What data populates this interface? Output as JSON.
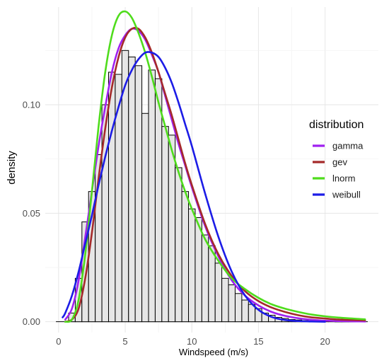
{
  "chart_data": {
    "type": "bar",
    "xlabel": "Windspeed (m/s)",
    "ylabel": "density",
    "xlim": [
      -1,
      24
    ],
    "ylim": [
      -0.005,
      0.145
    ],
    "x_ticks": [
      0,
      5,
      10,
      15,
      20
    ],
    "y_ticks": [
      0.0,
      0.05,
      0.1
    ],
    "y_tick_labels": [
      "0.00",
      "0.05",
      "0.10"
    ],
    "grid": true,
    "histogram": {
      "bin_width": 0.5,
      "bins": [
        {
          "x": 1.0,
          "y": 0.004
        },
        {
          "x": 1.5,
          "y": 0.02
        },
        {
          "x": 2.0,
          "y": 0.046
        },
        {
          "x": 2.5,
          "y": 0.06
        },
        {
          "x": 3.0,
          "y": 0.077
        },
        {
          "x": 3.5,
          "y": 0.1
        },
        {
          "x": 4.0,
          "y": 0.115
        },
        {
          "x": 4.5,
          "y": 0.114
        },
        {
          "x": 5.0,
          "y": 0.125
        },
        {
          "x": 5.5,
          "y": 0.122
        },
        {
          "x": 6.0,
          "y": 0.118
        },
        {
          "x": 6.5,
          "y": 0.096
        },
        {
          "x": 7.0,
          "y": 0.116
        },
        {
          "x": 7.5,
          "y": 0.112
        },
        {
          "x": 8.0,
          "y": 0.09
        },
        {
          "x": 8.5,
          "y": 0.086
        },
        {
          "x": 9.0,
          "y": 0.071
        },
        {
          "x": 9.5,
          "y": 0.06
        },
        {
          "x": 10.0,
          "y": 0.052
        },
        {
          "x": 10.5,
          "y": 0.048
        },
        {
          "x": 11.0,
          "y": 0.04
        },
        {
          "x": 11.5,
          "y": 0.035
        },
        {
          "x": 12.0,
          "y": 0.027
        },
        {
          "x": 12.5,
          "y": 0.02
        },
        {
          "x": 13.0,
          "y": 0.017
        },
        {
          "x": 13.5,
          "y": 0.013
        },
        {
          "x": 14.0,
          "y": 0.01
        },
        {
          "x": 14.5,
          "y": 0.008
        },
        {
          "x": 15.0,
          "y": 0.006
        },
        {
          "x": 15.5,
          "y": 0.004
        },
        {
          "x": 16.0,
          "y": 0.003
        },
        {
          "x": 16.5,
          "y": 0.002
        },
        {
          "x": 17.0,
          "y": 0.0015
        },
        {
          "x": 17.5,
          "y": 0.001
        },
        {
          "x": 18.0,
          "y": 0.0008
        },
        {
          "x": 18.5,
          "y": 0.0005
        },
        {
          "x": 19.0,
          "y": 0.0004
        },
        {
          "x": 19.5,
          "y": 0.0003
        },
        {
          "x": 20.0,
          "y": 0.0002
        },
        {
          "x": 20.5,
          "y": 0.0002
        },
        {
          "x": 21.0,
          "y": 0.0001
        },
        {
          "x": 21.5,
          "y": 0.0001
        },
        {
          "x": 22.0,
          "y": 0.0001
        },
        {
          "x": 22.5,
          "y": 0.0001
        }
      ]
    },
    "legend": {
      "title": "distribution",
      "position": "right"
    },
    "series": [
      {
        "name": "gamma",
        "color": "#a020f0",
        "x": [
          0.5,
          1,
          1.5,
          2,
          2.5,
          3,
          3.5,
          4,
          4.5,
          5,
          5.5,
          6,
          6.5,
          7,
          7.5,
          8,
          8.5,
          9,
          9.5,
          10,
          11,
          12,
          13,
          14,
          15,
          16,
          17,
          18,
          19,
          20,
          21,
          22,
          23
        ],
        "y": [
          0.001,
          0.006,
          0.019,
          0.039,
          0.06,
          0.081,
          0.099,
          0.115,
          0.126,
          0.132,
          0.135,
          0.134,
          0.13,
          0.123,
          0.115,
          0.104,
          0.093,
          0.082,
          0.072,
          0.062,
          0.044,
          0.03,
          0.019,
          0.012,
          0.0075,
          0.0045,
          0.0027,
          0.0016,
          0.0009,
          0.0005,
          0.0003,
          0.0002,
          0.0001
        ]
      },
      {
        "name": "gev",
        "color": "#a52a2a",
        "x": [
          0.5,
          1,
          1.5,
          2,
          2.5,
          3,
          3.5,
          4,
          4.5,
          5,
          5.5,
          6,
          6.5,
          7,
          7.5,
          8,
          8.5,
          9,
          9.5,
          10,
          11,
          12,
          13,
          14,
          15,
          16,
          17,
          18,
          19,
          20,
          21,
          22,
          23
        ],
        "y": [
          0.0,
          0.001,
          0.006,
          0.02,
          0.041,
          0.066,
          0.089,
          0.108,
          0.122,
          0.131,
          0.135,
          0.135,
          0.131,
          0.124,
          0.115,
          0.105,
          0.095,
          0.084,
          0.073,
          0.063,
          0.045,
          0.031,
          0.021,
          0.014,
          0.0095,
          0.0065,
          0.0045,
          0.003,
          0.002,
          0.0015,
          0.001,
          0.0008,
          0.0006
        ]
      },
      {
        "name": "lnorm",
        "color": "#4fdc1c",
        "x": [
          0.5,
          1,
          1.5,
          2,
          2.5,
          3,
          3.5,
          4,
          4.5,
          5,
          5.5,
          6,
          6.5,
          7,
          7.5,
          8,
          8.5,
          9,
          9.5,
          10,
          11,
          12,
          13,
          14,
          15,
          16,
          17,
          18,
          19,
          20,
          21,
          22,
          23
        ],
        "y": [
          0.0,
          0.001,
          0.01,
          0.031,
          0.06,
          0.09,
          0.115,
          0.132,
          0.141,
          0.143,
          0.14,
          0.133,
          0.124,
          0.113,
          0.101,
          0.09,
          0.079,
          0.069,
          0.06,
          0.052,
          0.038,
          0.028,
          0.02,
          0.015,
          0.011,
          0.008,
          0.006,
          0.0045,
          0.0033,
          0.0025,
          0.0019,
          0.0015,
          0.0011
        ]
      },
      {
        "name": "weibull",
        "color": "#1c1ce6",
        "x": [
          0.3,
          0.5,
          1,
          1.5,
          2,
          2.5,
          3,
          3.5,
          4,
          4.5,
          5,
          5.5,
          6,
          6.5,
          7,
          7.5,
          8,
          8.5,
          9,
          9.5,
          10,
          11,
          12,
          13,
          14,
          15,
          16,
          17,
          18,
          19,
          20
        ],
        "y": [
          0.002,
          0.004,
          0.012,
          0.023,
          0.036,
          0.049,
          0.063,
          0.076,
          0.088,
          0.099,
          0.109,
          0.116,
          0.121,
          0.124,
          0.124,
          0.122,
          0.117,
          0.11,
          0.101,
          0.091,
          0.081,
          0.059,
          0.039,
          0.023,
          0.012,
          0.0055,
          0.0022,
          0.0008,
          0.0003,
          0.0001,
          0.0
        ]
      }
    ]
  }
}
